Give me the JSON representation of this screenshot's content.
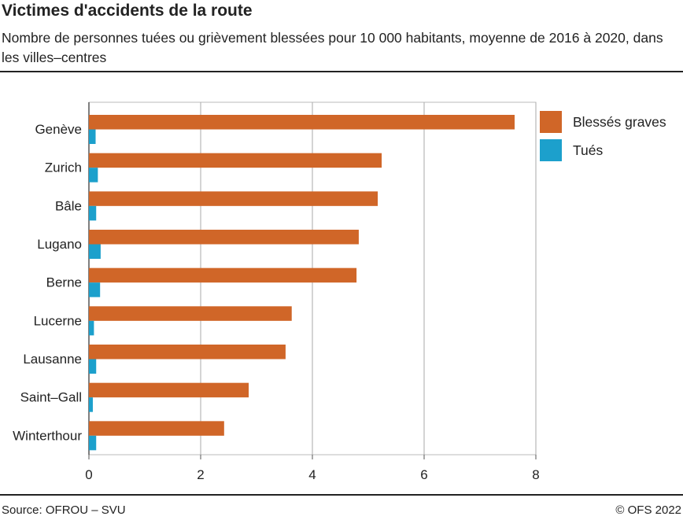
{
  "title": "Victimes d'accidents de la route",
  "subtitle": "Nombre de personnes tuées ou grièvement blessées pour 10 000 habitants, moyenne de 2016 à 2020, dans les villes–centres",
  "footer": {
    "source": "Source: OFROU – SVU",
    "copyright": "© OFS 2022"
  },
  "chart_data": {
    "type": "bar",
    "orientation": "horizontal",
    "categories": [
      "Genève",
      "Zurich",
      "Bâle",
      "Lugano",
      "Berne",
      "Lucerne",
      "Lausanne",
      "Saint–Gall",
      "Winterthour"
    ],
    "series": [
      {
        "name": "Blessés graves",
        "color": "#d06628",
        "values": [
          7.62,
          5.24,
          5.17,
          4.83,
          4.79,
          3.63,
          3.52,
          2.86,
          2.42
        ]
      },
      {
        "name": "Tués",
        "color": "#1ca0cc",
        "values": [
          0.12,
          0.16,
          0.13,
          0.21,
          0.2,
          0.09,
          0.13,
          0.07,
          0.13
        ]
      }
    ],
    "xlim": [
      0,
      8
    ],
    "xticks": [
      "0",
      "2",
      "4",
      "6",
      "8"
    ],
    "grid": true,
    "legend": "right"
  }
}
